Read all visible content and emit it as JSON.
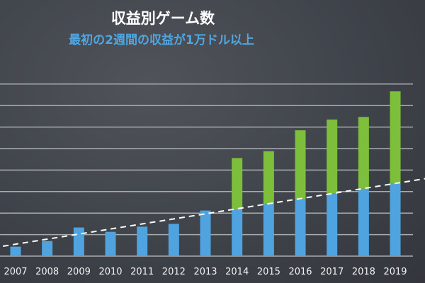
{
  "chart_data": {
    "type": "bar",
    "stacked": true,
    "title": "収益別ゲーム数",
    "subtitle": "最初の2週間の収益が1万ドル以上",
    "xlabel": "",
    "ylabel": "",
    "ylim": [
      0,
      8
    ],
    "grid": true,
    "categories": [
      "2007",
      "2008",
      "2009",
      "2010",
      "2011",
      "2012",
      "2013",
      "2014",
      "2015",
      "2016",
      "2017",
      "2018",
      "2019"
    ],
    "series": [
      {
        "name": "blue",
        "color": "#4fa3de",
        "values": [
          0.44,
          0.7,
          1.33,
          1.13,
          1.37,
          1.5,
          2.12,
          2.17,
          2.42,
          2.64,
          2.92,
          3.13,
          3.39
        ]
      },
      {
        "name": "green",
        "color": "#7dbf3b",
        "values": [
          0,
          0,
          0,
          0,
          0,
          0,
          0,
          2.39,
          2.46,
          3.21,
          3.43,
          3.34,
          4.27
        ]
      }
    ],
    "trendline": {
      "style": "dashed",
      "color": "#ffffff",
      "start": {
        "x": 2006.6,
        "y": 0.46
      },
      "end": {
        "x": 2019.94,
        "y": 3.6
      }
    }
  }
}
